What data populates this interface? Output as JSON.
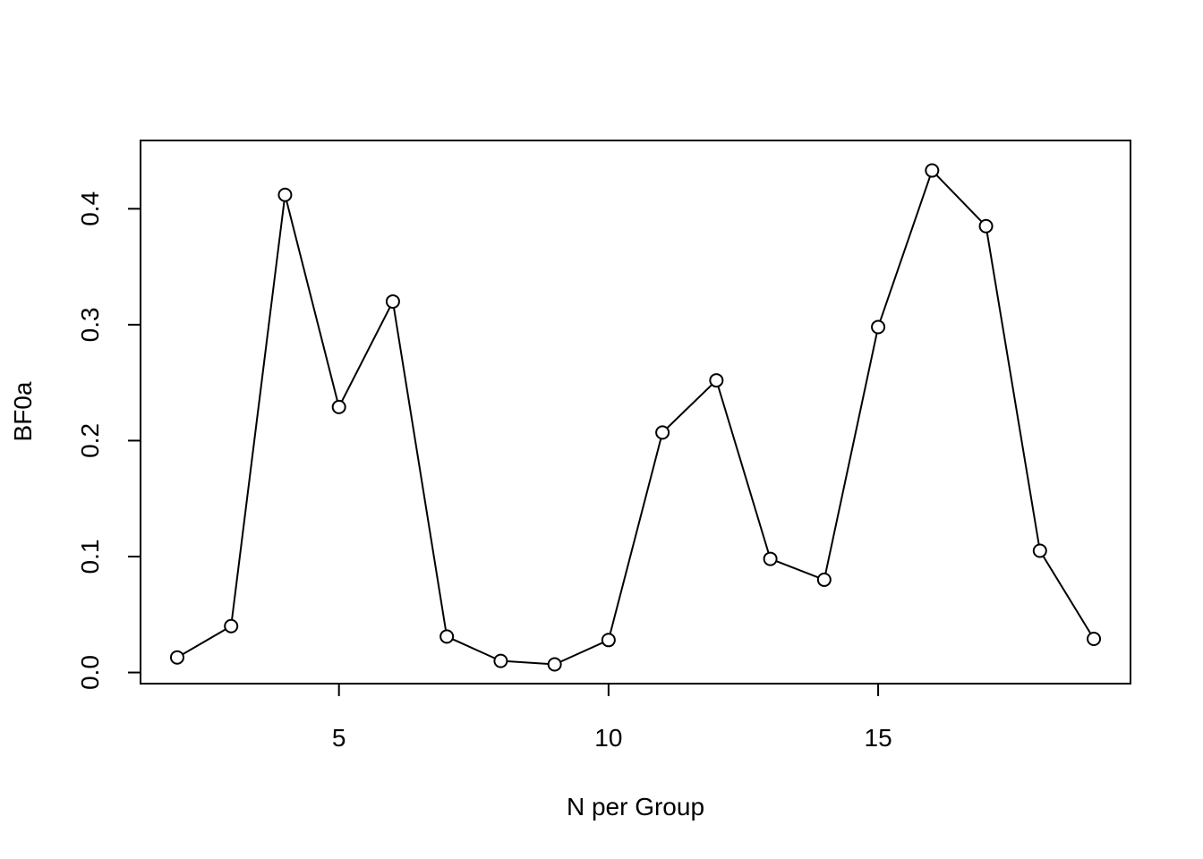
{
  "chart_data": {
    "type": "line",
    "title": "",
    "xlabel": "N per Group",
    "ylabel": "BF0a",
    "xlim": [
      1.32,
      19.68
    ],
    "ylim": [
      -0.0096,
      0.4589
    ],
    "x_ticks": [
      5,
      10,
      15
    ],
    "x_tick_labels": [
      "5",
      "10",
      "15"
    ],
    "y_ticks": [
      0.0,
      0.1,
      0.2,
      0.3,
      0.4
    ],
    "y_tick_labels": [
      "0.0",
      "0.1",
      "0.2",
      "0.3",
      "0.4"
    ],
    "grid": false,
    "legend": "none",
    "marker": "open-circle",
    "series": [
      {
        "x": [
          2,
          3,
          4,
          5,
          6,
          7,
          8,
          9,
          10,
          11,
          12,
          13,
          14,
          15,
          16,
          17,
          18,
          19
        ],
        "values": [
          0.013,
          0.04,
          0.412,
          0.229,
          0.32,
          0.031,
          0.01,
          0.007,
          0.028,
          0.207,
          0.252,
          0.098,
          0.08,
          0.298,
          0.433,
          0.385,
          0.105,
          0.029
        ]
      }
    ]
  }
}
